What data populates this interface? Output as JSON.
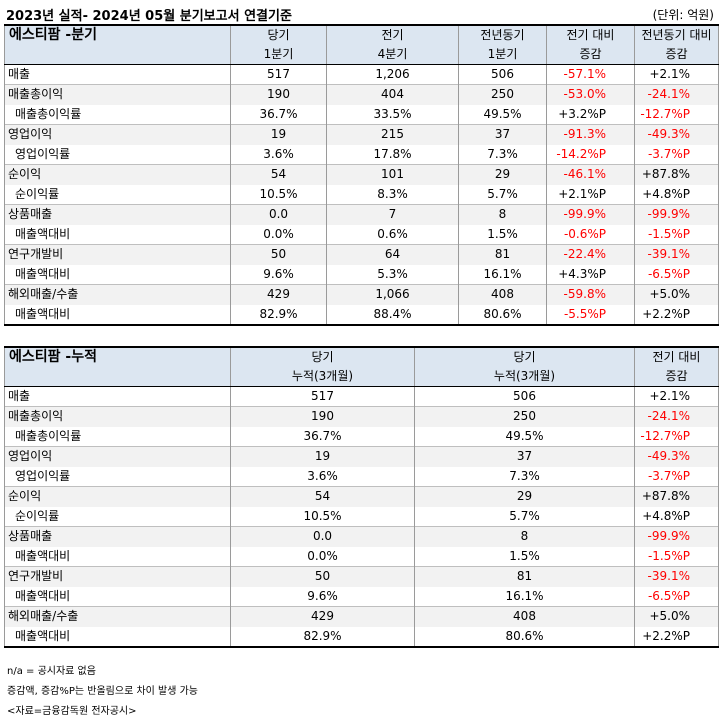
{
  "title": "2023년 실적- 2024년 05월 분기보고서 연결기준",
  "unit": "(단위: 억원)",
  "colors": {
    "header_bg": "#dce6f1",
    "shade_bg": "#f2f2f2",
    "negative": "#ff0000"
  },
  "quarterly": {
    "name": "에스티팜 -분기",
    "headers": [
      [
        "당기",
        "1분기"
      ],
      [
        "전기",
        "4분기"
      ],
      [
        "전년동기",
        "1분기"
      ],
      [
        "전기 대비",
        "증감"
      ],
      [
        "전년동기 대비",
        "증감"
      ]
    ],
    "rows": [
      {
        "label": "매출",
        "sub": false,
        "shade": false,
        "values": [
          "517",
          "1,206",
          "506",
          "-57.1%",
          "+2.1%"
        ]
      },
      {
        "label": "매출총이익",
        "sub": false,
        "shade": true,
        "values": [
          "190",
          "404",
          "250",
          "-53.0%",
          "-24.1%"
        ]
      },
      {
        "label": "매출총이익률",
        "sub": true,
        "shade": false,
        "values": [
          "36.7%",
          "33.5%",
          "49.5%",
          "+3.2%P",
          "-12.7%P"
        ]
      },
      {
        "label": "영업이익",
        "sub": false,
        "shade": true,
        "values": [
          "19",
          "215",
          "37",
          "-91.3%",
          "-49.3%"
        ]
      },
      {
        "label": "영업이익률",
        "sub": true,
        "shade": false,
        "values": [
          "3.6%",
          "17.8%",
          "7.3%",
          "-14.2%P",
          "-3.7%P"
        ]
      },
      {
        "label": "순이익",
        "sub": false,
        "shade": true,
        "values": [
          "54",
          "101",
          "29",
          "-46.1%",
          "+87.8%"
        ]
      },
      {
        "label": "순이익률",
        "sub": true,
        "shade": false,
        "values": [
          "10.5%",
          "8.3%",
          "5.7%",
          "+2.1%P",
          "+4.8%P"
        ]
      },
      {
        "label": "상품매출",
        "sub": false,
        "shade": true,
        "values": [
          "0.0",
          "7",
          "8",
          "-99.9%",
          "-99.9%"
        ]
      },
      {
        "label": "매출액대비",
        "sub": true,
        "shade": false,
        "values": [
          "0.0%",
          "0.6%",
          "1.5%",
          "-0.6%P",
          "-1.5%P"
        ]
      },
      {
        "label": "연구개발비",
        "sub": false,
        "shade": true,
        "values": [
          "50",
          "64",
          "81",
          "-22.4%",
          "-39.1%"
        ]
      },
      {
        "label": "매출액대비",
        "sub": true,
        "shade": false,
        "values": [
          "9.6%",
          "5.3%",
          "16.1%",
          "+4.3%P",
          "-6.5%P"
        ]
      },
      {
        "label": "해외매출/수출",
        "sub": false,
        "shade": true,
        "values": [
          "429",
          "1,066",
          "408",
          "-59.8%",
          "+5.0%"
        ]
      },
      {
        "label": "매출액대비",
        "sub": true,
        "shade": false,
        "values": [
          "82.9%",
          "88.4%",
          "80.6%",
          "-5.5%P",
          "+2.2%P"
        ]
      }
    ]
  },
  "cumulative": {
    "name": "에스티팜 -누적",
    "headers": [
      [
        "당기",
        "누적(3개월)"
      ],
      [
        "당기",
        "누적(3개월)"
      ],
      [
        "전기 대비",
        "증감"
      ]
    ],
    "rows": [
      {
        "label": "매출",
        "sub": false,
        "shade": false,
        "values": [
          "517",
          "506",
          "+2.1%"
        ]
      },
      {
        "label": "매출총이익",
        "sub": false,
        "shade": true,
        "values": [
          "190",
          "250",
          "-24.1%"
        ]
      },
      {
        "label": "매출총이익률",
        "sub": true,
        "shade": false,
        "values": [
          "36.7%",
          "49.5%",
          "-12.7%P"
        ]
      },
      {
        "label": "영업이익",
        "sub": false,
        "shade": true,
        "values": [
          "19",
          "37",
          "-49.3%"
        ]
      },
      {
        "label": "영업이익률",
        "sub": true,
        "shade": false,
        "values": [
          "3.6%",
          "7.3%",
          "-3.7%P"
        ]
      },
      {
        "label": "순이익",
        "sub": false,
        "shade": true,
        "values": [
          "54",
          "29",
          "+87.8%"
        ]
      },
      {
        "label": "순이익률",
        "sub": true,
        "shade": false,
        "values": [
          "10.5%",
          "5.7%",
          "+4.8%P"
        ]
      },
      {
        "label": "상품매출",
        "sub": false,
        "shade": true,
        "values": [
          "0.0",
          "8",
          "-99.9%"
        ]
      },
      {
        "label": "매출액대비",
        "sub": true,
        "shade": false,
        "values": [
          "0.0%",
          "1.5%",
          "-1.5%P"
        ]
      },
      {
        "label": "연구개발비",
        "sub": false,
        "shade": true,
        "values": [
          "50",
          "81",
          "-39.1%"
        ]
      },
      {
        "label": "매출액대비",
        "sub": true,
        "shade": false,
        "values": [
          "9.6%",
          "16.1%",
          "-6.5%P"
        ]
      },
      {
        "label": "해외매출/수출",
        "sub": false,
        "shade": true,
        "values": [
          "429",
          "408",
          "+5.0%"
        ]
      },
      {
        "label": "매출액대비",
        "sub": true,
        "shade": false,
        "values": [
          "82.9%",
          "80.6%",
          "+2.2%P"
        ]
      }
    ]
  },
  "notes": [
    "n/a = 공시자료 없음",
    "증감액, 증감%P는 반올림으로 차이 발생 가능",
    "<자료=금융감독원 전자공시>"
  ]
}
